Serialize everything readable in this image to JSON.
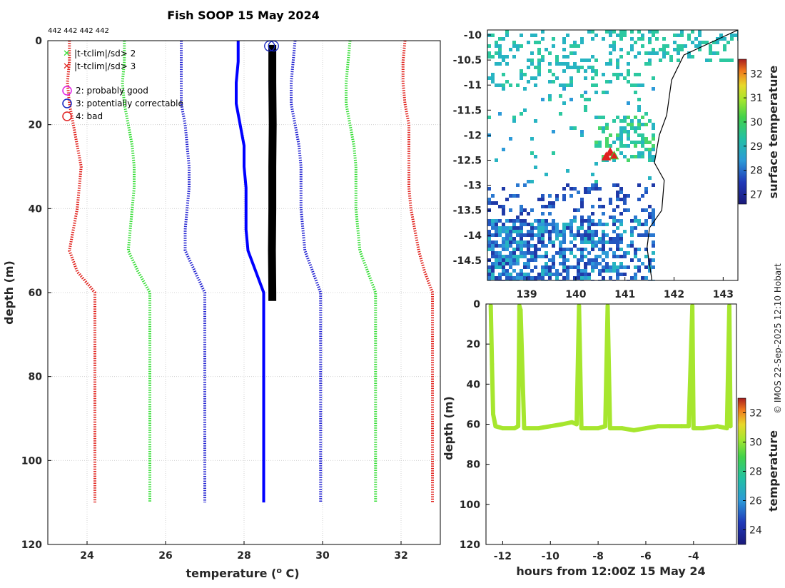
{
  "title": "Fish SOOP 15 May 2024",
  "id_label": "442 442 442 442",
  "credit": "© IMOS 22-Sep-2025 12:10 Hobart",
  "legend": {
    "flag2": "|t-tclim|/sd> 2",
    "flag3": "|t-tclim|/sd> 3",
    "qc2": "2: probably good",
    "qc3": "3: potentially correctable",
    "qc4": "4: bad"
  },
  "colors": {
    "sd3": "#e0201b",
    "sd2": "#33dd33",
    "sd1": "#1f1fd0",
    "clim": "#0000ff",
    "profile": "#000000",
    "qc2": "#e020e0",
    "qc3": "#1020c0",
    "qc4": "#e02020",
    "deck": "#a6e62e"
  },
  "chart_data": [
    {
      "name": "profile",
      "type": "line",
      "title": "Fish SOOP 15 May 2024",
      "xlabel": "temperature (o C)",
      "xlabel_main": "temperature (",
      "xlabel_sup": "o",
      "xlabel_end": " C)",
      "ylabel": "depth (m)",
      "xlim": [
        23,
        33
      ],
      "ylim": [
        0,
        120
      ],
      "y_reversed": true,
      "xticks": [
        "24",
        "26",
        "28",
        "30",
        "32"
      ],
      "yticks": [
        "0",
        "20",
        "40",
        "60",
        "80",
        "100",
        "120"
      ],
      "grid": true,
      "series": [
        {
          "name": "clim -3sd",
          "style": "dotted",
          "color": "red",
          "depth": [
            0,
            5,
            10,
            15,
            20,
            25,
            30,
            35,
            40,
            45,
            50,
            55,
            60,
            70,
            80,
            90,
            100,
            110
          ],
          "temp": [
            23.55,
            23.55,
            23.5,
            23.55,
            23.65,
            23.75,
            23.85,
            23.8,
            23.75,
            23.65,
            23.55,
            23.75,
            24.2,
            24.2,
            24.2,
            24.2,
            24.2,
            24.2
          ]
        },
        {
          "name": "clim -2sd",
          "style": "dotted",
          "color": "green",
          "depth": [
            0,
            5,
            10,
            15,
            20,
            25,
            30,
            35,
            40,
            45,
            50,
            55,
            60,
            70,
            80,
            90,
            100,
            110
          ],
          "temp": [
            24.95,
            24.95,
            24.9,
            24.95,
            25.05,
            25.15,
            25.2,
            25.2,
            25.15,
            25.1,
            25.05,
            25.3,
            25.6,
            25.6,
            25.6,
            25.6,
            25.6,
            25.6
          ]
        },
        {
          "name": "clim -1sd",
          "style": "dotted",
          "color": "blue",
          "depth": [
            0,
            5,
            10,
            15,
            20,
            25,
            30,
            35,
            40,
            45,
            50,
            55,
            60,
            70,
            80,
            90,
            100,
            110
          ],
          "temp": [
            26.4,
            26.4,
            26.4,
            26.4,
            26.5,
            26.55,
            26.6,
            26.6,
            26.55,
            26.5,
            26.5,
            26.75,
            27.0,
            27.0,
            27.0,
            27.0,
            27.0,
            27.0
          ]
        },
        {
          "name": "clim mean",
          "style": "solid",
          "color": "clim",
          "depth": [
            0,
            5,
            10,
            15,
            20,
            25,
            30,
            35,
            40,
            45,
            50,
            55,
            60,
            70,
            80,
            90,
            100,
            110
          ],
          "temp": [
            27.85,
            27.85,
            27.8,
            27.8,
            27.9,
            28.0,
            28.0,
            28.05,
            28.05,
            28.05,
            28.1,
            28.3,
            28.5,
            28.5,
            28.5,
            28.5,
            28.5,
            28.5
          ]
        },
        {
          "name": "clim +1sd",
          "style": "dotted",
          "color": "blue",
          "depth": [
            0,
            5,
            10,
            15,
            20,
            25,
            30,
            35,
            40,
            45,
            50,
            55,
            60,
            70,
            80,
            90,
            100,
            110
          ],
          "temp": [
            29.3,
            29.25,
            29.2,
            29.2,
            29.3,
            29.4,
            29.45,
            29.45,
            29.45,
            29.5,
            29.55,
            29.75,
            29.95,
            29.95,
            29.95,
            29.95,
            29.95,
            29.95
          ]
        },
        {
          "name": "clim +2sd",
          "style": "dotted",
          "color": "green",
          "depth": [
            0,
            5,
            10,
            15,
            20,
            25,
            30,
            35,
            40,
            45,
            50,
            55,
            60,
            70,
            80,
            90,
            100,
            110
          ],
          "temp": [
            30.7,
            30.65,
            30.6,
            30.6,
            30.7,
            30.8,
            30.85,
            30.85,
            30.85,
            30.9,
            30.95,
            31.15,
            31.35,
            31.35,
            31.35,
            31.35,
            31.35,
            31.35
          ]
        },
        {
          "name": "clim +3sd",
          "style": "dotted",
          "color": "red",
          "depth": [
            0,
            5,
            10,
            15,
            20,
            25,
            30,
            35,
            40,
            45,
            50,
            55,
            60,
            70,
            80,
            90,
            100,
            110
          ],
          "temp": [
            32.1,
            32.05,
            32.05,
            32.1,
            32.2,
            32.2,
            32.2,
            32.2,
            32.25,
            32.35,
            32.45,
            32.6,
            32.8,
            32.8,
            32.8,
            32.8,
            32.8,
            32.8
          ]
        },
        {
          "name": "observed profile",
          "style": "thick",
          "color": "profile",
          "depth": [
            1,
            10,
            20,
            30,
            40,
            50,
            60,
            62
          ],
          "temp": [
            28.72,
            28.72,
            28.73,
            28.72,
            28.72,
            28.71,
            28.72,
            28.72
          ]
        }
      ],
      "qc_circles": [
        {
          "temp": 28.65,
          "depth": 0.6
        },
        {
          "temp": 28.75,
          "depth": 0.6
        }
      ]
    },
    {
      "name": "map",
      "type": "heatmap",
      "xlim": [
        138.2,
        143.3
      ],
      "ylim": [
        -14.9,
        -9.9
      ],
      "xticks": [
        "139",
        "140",
        "141",
        "142",
        "143"
      ],
      "yticks": [
        "-10",
        "-10.5",
        "-11",
        "-11.5",
        "-12",
        "-12.5",
        "-13",
        "-13.5",
        "-14",
        "-14.5"
      ],
      "colorbar_label": "surface temperature",
      "colorbar_range": [
        26.6,
        32.6
      ],
      "colorbar_ticks": [
        "27",
        "28",
        "29",
        "30",
        "31",
        "32"
      ],
      "coastline": [
        [
          143.3,
          -9.9
        ],
        [
          142.2,
          -10.4
        ],
        [
          141.95,
          -10.9
        ],
        [
          141.85,
          -11.6
        ],
        [
          141.7,
          -12.0
        ],
        [
          141.6,
          -12.55
        ],
        [
          141.8,
          -12.9
        ],
        [
          141.75,
          -13.5
        ],
        [
          141.5,
          -13.85
        ],
        [
          141.45,
          -14.25
        ],
        [
          141.55,
          -14.9
        ]
      ],
      "stations": [
        {
          "lon": 140.7,
          "lat": -12.35
        },
        {
          "lon": 140.78,
          "lat": -12.42
        },
        {
          "lon": 140.62,
          "lat": -12.44
        }
      ]
    },
    {
      "name": "deck",
      "type": "scatter",
      "xlabel": "hours from 12:00Z 15 May 24",
      "ylabel": "depth (m)",
      "xlim": [
        -12.7,
        -2.2
      ],
      "ylim": [
        0,
        120
      ],
      "y_reversed": true,
      "xticks": [
        "-12",
        "-10",
        "-8",
        "-6",
        "-4"
      ],
      "yticks": [
        "0",
        "20",
        "40",
        "60",
        "80",
        "100",
        "120"
      ],
      "colorbar_label": "temperature",
      "colorbar_range": [
        23,
        33
      ],
      "colorbar_ticks": [
        "24",
        "26",
        "28",
        "30",
        "32"
      ],
      "x": [
        -12.5,
        -12.45,
        -12.4,
        -12.3,
        -12.0,
        -11.5,
        -11.35,
        -11.3,
        -11.25,
        -11.1,
        -10.9,
        -10.5,
        -10.0,
        -9.5,
        -9.1,
        -8.9,
        -8.8,
        -8.7,
        -8.5,
        -8.0,
        -7.7,
        -7.6,
        -7.5,
        -7.0,
        -6.5,
        -6.0,
        -5.5,
        -5.0,
        -4.5,
        -4.2,
        -4.05,
        -4.0,
        -3.9,
        -3.6,
        -3.0,
        -2.6,
        -2.5,
        -2.45
      ],
      "y": [
        1,
        30,
        55,
        61,
        62,
        62,
        61,
        1,
        3,
        62,
        62,
        62,
        61,
        60,
        59,
        60,
        1,
        62,
        62,
        62,
        61,
        1,
        62,
        62,
        63,
        62,
        61,
        61,
        61,
        61,
        1,
        62,
        62,
        62,
        61,
        62,
        1,
        61
      ]
    }
  ]
}
